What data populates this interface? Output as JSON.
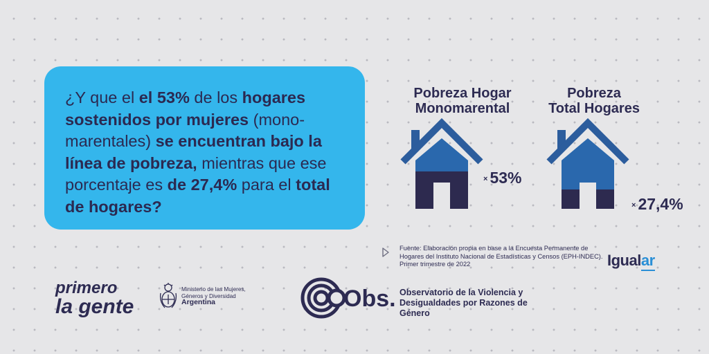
{
  "question": {
    "segments": [
      {
        "text": "¿Y que el ",
        "bold": false
      },
      {
        "text": "el 53%",
        "bold": true
      },
      {
        "text": " de los ",
        "bold": false
      },
      {
        "text": "hogares sostenidos por mujeres",
        "bold": true
      },
      {
        "text": " (mono-marentales) ",
        "bold": false
      },
      {
        "text": "se encuentran bajo la línea de pobreza,",
        "bold": true
      },
      {
        "text": " mientras que ese porcentaje es ",
        "bold": false
      },
      {
        "text": "de 27,4%",
        "bold": true
      },
      {
        "text": " para el ",
        "bold": false
      },
      {
        "text": "total de hogares?",
        "bold": true
      }
    ]
  },
  "houses": [
    {
      "title_line1": "Pobreza Hogar",
      "title_line2": "Monomarental",
      "percentage": "53%",
      "share": 53
    },
    {
      "title_line1": "Pobreza",
      "title_line2": "Total Hogares",
      "percentage": "27,4%",
      "share": 27.4
    }
  ],
  "percent_prefix": "×",
  "colors": {
    "roof": "#2c5d9d",
    "house_fill": "#2a68ad",
    "poverty_fill": "#2d2a4f",
    "bubble": "#34b6ec",
    "text": "#2d2b52"
  },
  "source": {
    "text": "Fuente: Elaboración propia en base a la Encuesta Permanente de Hogares del Instituto Nacional de Estadísticas y Censos (EPH-INDEC). Primer trimestre de 2022"
  },
  "brand": {
    "igual": "Igual",
    "ar": "ar"
  },
  "primero": {
    "line1": "primero",
    "line2": "la gente"
  },
  "ministerio": {
    "line1": "Ministerio de las Mujeres,",
    "line2": "Géneros y Diversidad",
    "pais": "Argentina"
  },
  "observatorio": {
    "logo_text": "Obs.",
    "name": "Observatorio de la Violencia y Desigualdades por Razones de Género"
  }
}
